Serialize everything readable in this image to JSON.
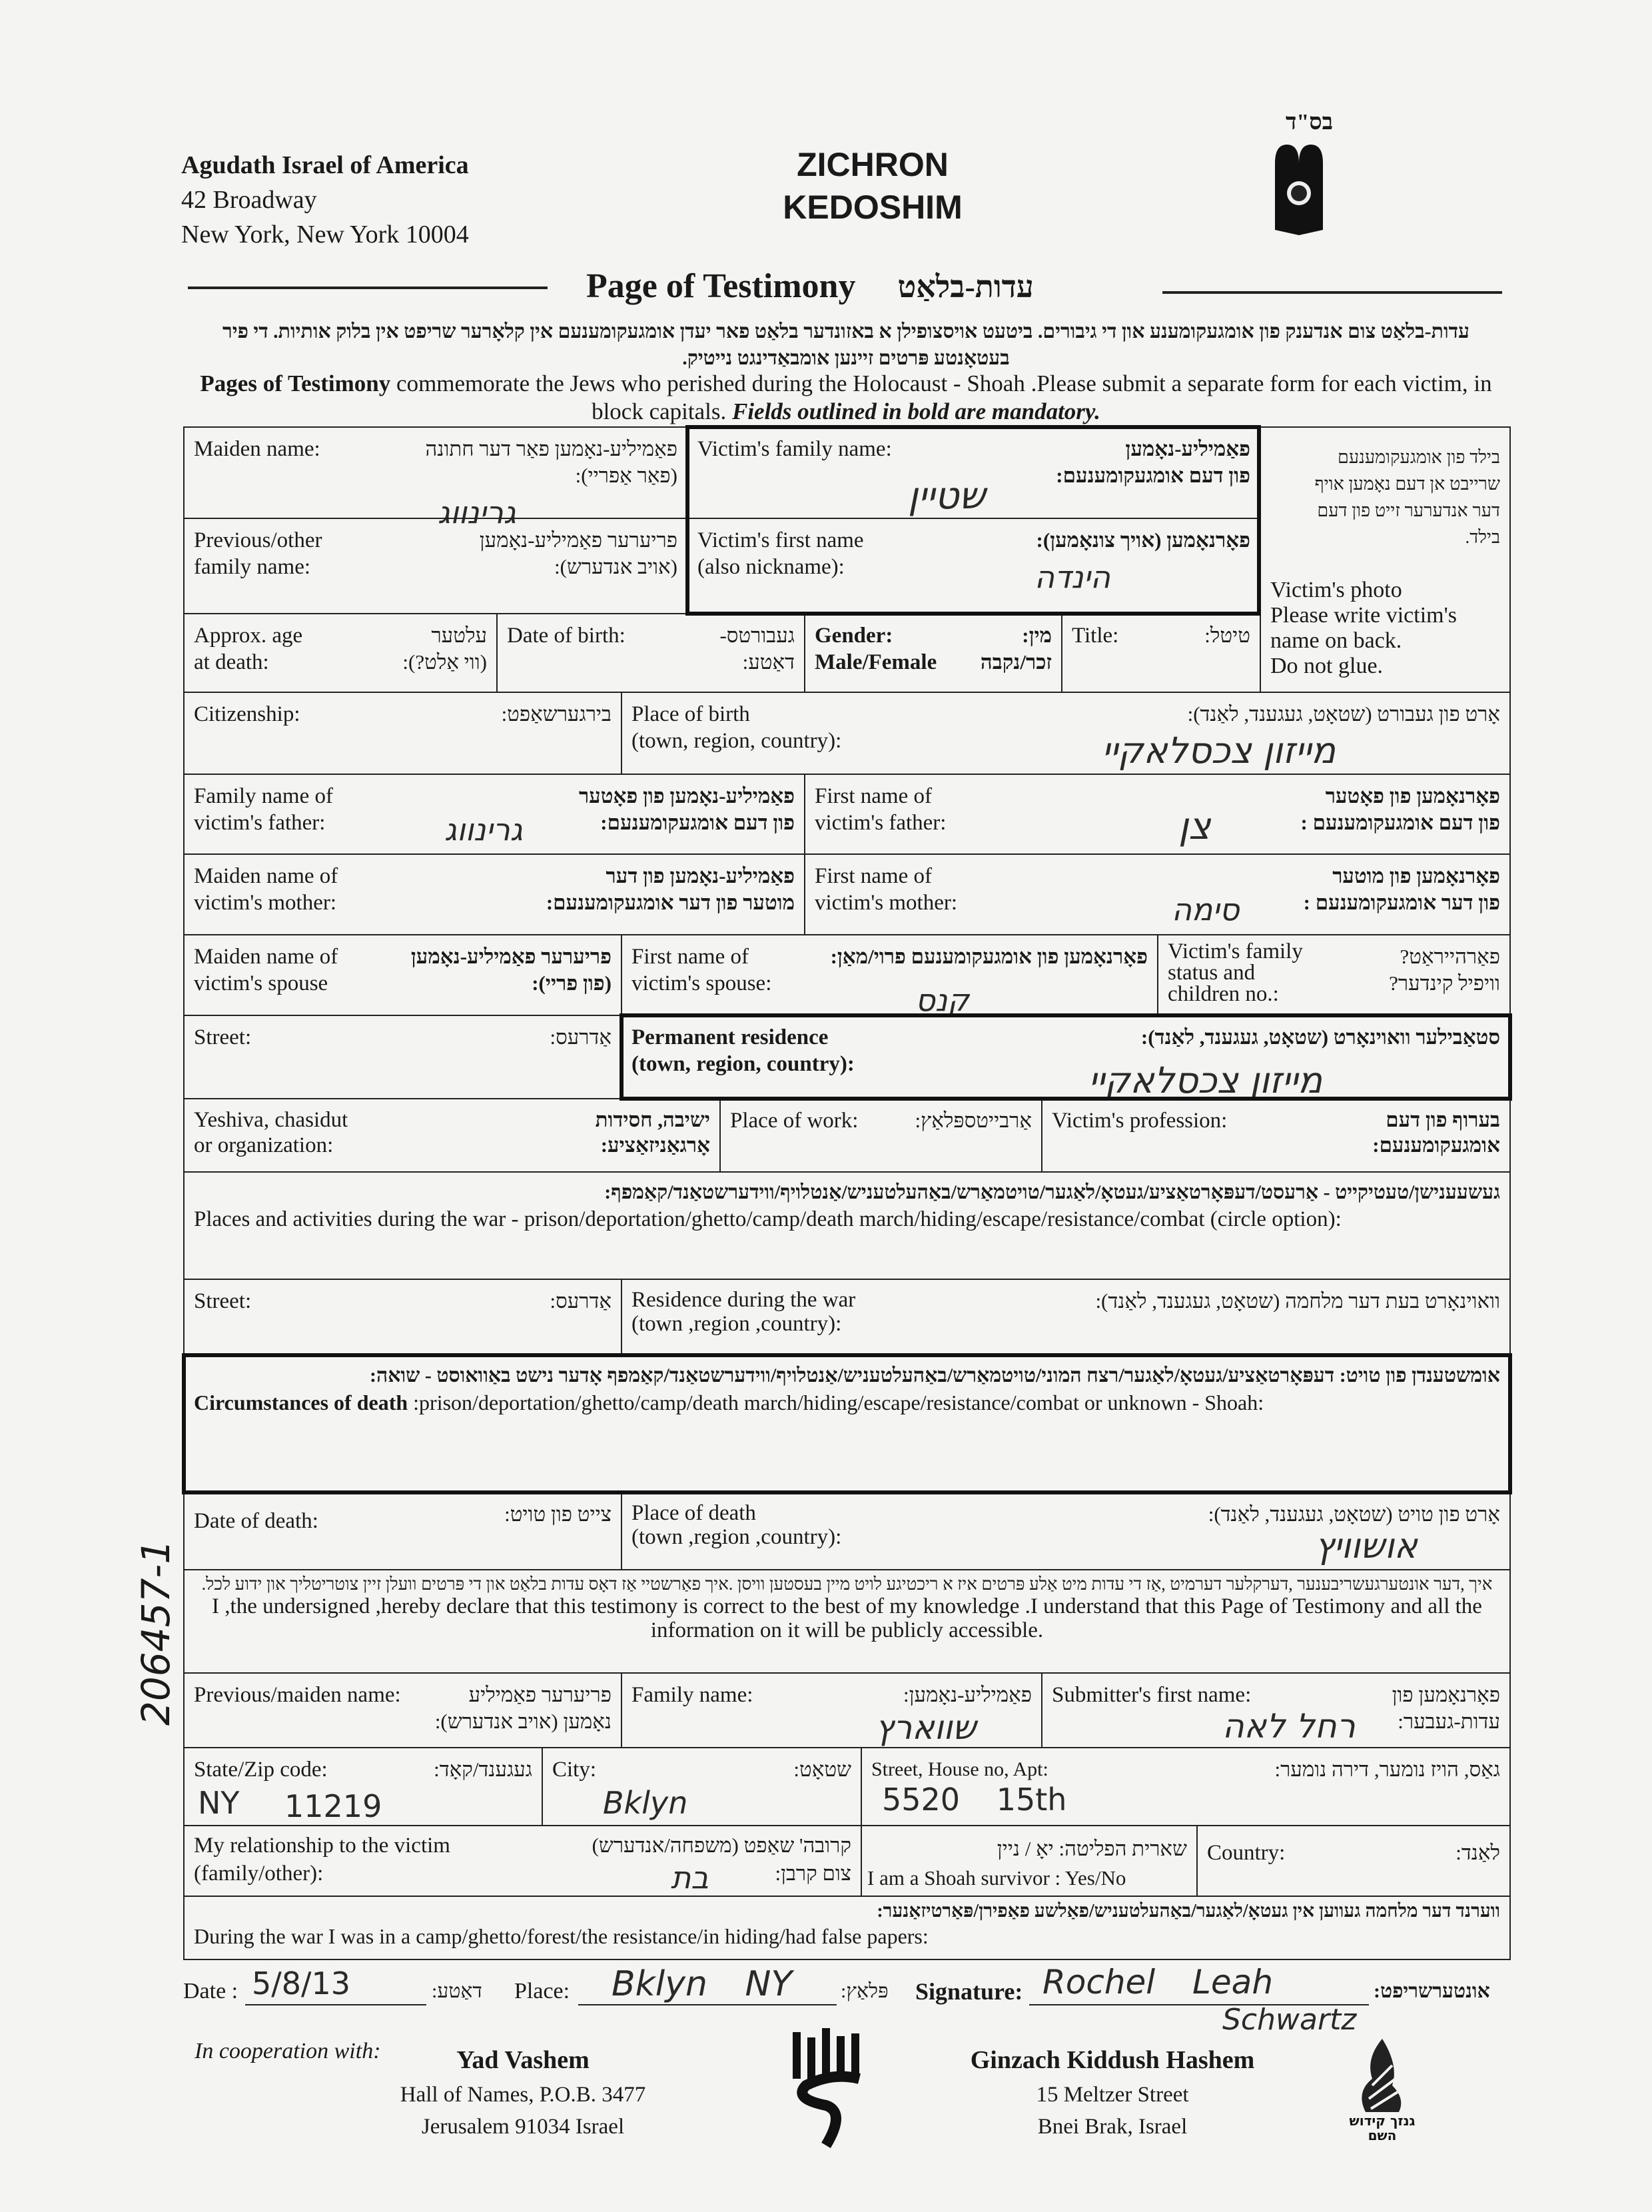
{
  "header": {
    "org_name": "Agudath Israel of America",
    "org_street": "42 Broadway",
    "org_city": "New York, New York 10004",
    "title_line1": "ZICHRON",
    "title_line2": "KEDOSHIM",
    "bsd": "בס\"ד"
  },
  "form_title": {
    "en": "Page of Testimony",
    "he": "עדות-בלאַט"
  },
  "intro": {
    "he": "עדות-בלאַט צום אנדענק פון אומגעקומענע און די גיבורים. ביטעט אויסצופילן א באזונדער בלאַט פאר יעדן אומגעקומענעם אין קלאָרער שריפט אין בלוק אותיות. די פיר בעטאָנטע פּרטים זיינען אומבאַדינגט נייטיק.",
    "en_bold": "Pages of Testimony",
    "en_rest": " commemorate the Jews who perished during the Holocaust - Shoah .Please submit a separate form for each victim, in block capitals. ",
    "en_italic": "Fields outlined in bold are mandatory."
  },
  "fields": {
    "maiden": {
      "en": "Maiden name:",
      "he": "פאַמיליע-נאָמען פאַר דער חתונה\n(פאַר אַפריי):",
      "value": "גרינווג"
    },
    "family": {
      "en": "Victim's family name:",
      "he": "פאַמיליע-נאָמען\nפון דעם אומגעקומענעם:",
      "value": "שטיין"
    },
    "photo": {
      "he": "בילד פון אומגעקומענעם\nשרייבט אן דעם נאָמען אויף\nדער אנדערער זייט פון דעם\nבילד.",
      "en": "Victim's photo\nPlease write victim's\nname on back.\nDo not glue."
    },
    "previous": {
      "en": "Previous/other\nfamily name:",
      "he": "פריערער פאַמיליע-נאָמען\n(אויב אנדערש):"
    },
    "first": {
      "en": "Victim's first name\n(also nickname):",
      "he": "פאָרנאָמען (אויך צונאָמען):",
      "value": "הינדה"
    },
    "age": {
      "en": "Approx. age\nat death:",
      "he": "עלטער\n(ווי אַלט?):"
    },
    "dob": {
      "en": "Date of birth:",
      "he": "געבורטס-\nדאַטע:"
    },
    "gender": {
      "en": "Gender:\nMale/Female",
      "he": "מין:\nזכר/נקבה"
    },
    "title": {
      "en": "Title:",
      "he": "טיטל:"
    },
    "citizenship": {
      "en": "Citizenship:",
      "he": "בירגערשאַפט:"
    },
    "pob": {
      "en": "Place of birth\n(town, region, country):",
      "he": "אָרט פון געבורט (שטאָט, געגענד, לאַנד):",
      "value": "מייזון צכסלאקיי"
    },
    "father_family": {
      "en": "Family name of\nvictim's father:",
      "he": "פאַמיליע-נאָמען פון פאָטער\nפון דעם אומגעקומענעם:",
      "value": "גרינווג"
    },
    "father_first": {
      "en": "First name of\nvictim's father:",
      "he": "פאָרנאָמען פון פאָטער\nפון דעם אומגעקומענעם :",
      "value": "צן"
    },
    "mother_maiden": {
      "en": "Maiden name of\nvictim's mother:",
      "he": "פאַמיליע-נאָמען פון דער\nמוטער פון דער אומגעקומענעם:"
    },
    "mother_first": {
      "en": "First name of\nvictim's mother:",
      "he": "פאָרנאָמען פון מוטער\nפון דער אומגעקומענעם :",
      "value": "סימה"
    },
    "spouse_maiden": {
      "en": "Maiden name of\nvictim's spouse",
      "he": "פריערער פאַמיליע-נאָמען\n(פון פריי):"
    },
    "spouse_first": {
      "en": "First name of\nvictim's spouse:",
      "he": "פאָרנאָמען פון אומגעקומענעם פרוי/מאַן:",
      "value": "קנס"
    },
    "family_status": {
      "en": "Victim's family\nstatus and\nchildren no.:",
      "he": "פאַרהייראַט?\nוויפיל קינדער?"
    },
    "street": {
      "en": "Street:",
      "he": "אַדרעס:"
    },
    "residence": {
      "en": "Permanent residence\n(town, region, country):",
      "he": "סטאַבילער וואוינאָרט (שטאָט, געגענד, לאַנד):",
      "value": "מייזון צכסלאקיי"
    },
    "yeshiva": {
      "en": "Yeshiva, chasidut\nor organization:",
      "he": "ישיבה, חסידות\nאָרגאַניזאַציע:"
    },
    "work": {
      "en": "Place of work:",
      "he": "אַרבייטספּלאַץ:"
    },
    "profession": {
      "en": "Victim's profession:",
      "he": "בערוף פון דעם\nאומגעקומענעם:"
    },
    "activities": {
      "he": "געשעענישן/טעטיקייט - אַרעסט/דעפּאָרטאַציע/געטאָ/לאַגער/טויטמאַרש/באַהעלטעניש/אַנטלויף/ווידערשטאַנד/קאַמפף:",
      "en": "Places and activities during the war - prison/deportation/ghetto/camp/death march/hiding/escape/resistance/combat (circle option):"
    },
    "street_war": {
      "en": "Street:",
      "he": "אַדרעס:"
    },
    "residence_war": {
      "en": "Residence during the war\n(town ,region ,country):",
      "he": "וואוינאָרט בעת דער מלחמה (שטאָט, געגענד, לאַנד):"
    },
    "circumstances": {
      "he": "אומשטענדן פון טויט: דעפּאָרטאַציע/געטאָ/לאַגער/רצח המוני/טויטמאַרש/באַהעלטעניש/אַנטלויף/ווידערשטאַנד/קאַמפף אָדער נישט באַוואוסט - שואה:",
      "en_bold": "Circumstances of death",
      "en_rest": " :prison/deportation/ghetto/camp/death march/hiding/escape/resistance/combat or unknown - Shoah:"
    },
    "dod": {
      "en": "Date of death:",
      "he": "צייט פון טויט:"
    },
    "pod": {
      "en": "Place of death\n(town ,region ,country):",
      "he": "אָרט פון טויט (שטאָט, געגענד, לאַנד):",
      "value": "אושוויץ"
    },
    "declaration": {
      "he": "איך ,דער אונטערגעשריבענער ,דערקלער דערמיט ,אַז די עדות מיט אַלע פּרטים איז א ריכטיגע לויט מיין בעסטען וויסן .איך פאַרשטיי אַז דאָס עדות בלאַט און די פּרטים וועלן זיין צוטריטליך און ידוע לכל.",
      "en": "I ,the undersigned ,hereby declare that this testimony is correct to the best of my knowledge .I understand that this Page of Testimony and all the information on it will be publicly accessible."
    },
    "sub_prev": {
      "en": "Previous/maiden name:",
      "he": "פריערער פאַמיליע\nנאָמען (אויב אנדערש):"
    },
    "sub_family": {
      "en": "Family name:",
      "he": "פאַמיליע-נאָמען:",
      "value": "שווארץ"
    },
    "sub_first": {
      "en": "Submitter's first name:",
      "he": "פאָרנאָמען פון\nעדות-געבער:",
      "value": "רחל לאה"
    },
    "state_zip": {
      "en": "State/Zip code:",
      "he": "געגענד/קאָד:",
      "state": "NY",
      "zip": "11219"
    },
    "city": {
      "en": "City:",
      "he": "שטאָט:",
      "value": "Bklyn"
    },
    "street_house": {
      "en": "Street, House no, Apt:",
      "he": "גאַס, הויז נומער, דירה נומער:",
      "value": "5520 15th"
    },
    "relationship": {
      "en": "My relationship to the victim\n(family/other):",
      "he": "קרובה' שאַפט (משפחה/אנדערש)\nצום קרבן:",
      "value": "בת"
    },
    "survivor": {
      "he": "שארית הפליטה: יאָ / ניין",
      "en": "I am a Shoah survivor : Yes/No"
    },
    "country": {
      "en": "Country:",
      "he": "לאַנד:"
    },
    "during_war": {
      "he": "ווערנד דער מלחמה געווען אין געטאָ/לאַגער/באַהעלטעניש/פאַלשע פאַפירן/פּאַרטיזאַנער:",
      "en": "During the war I was in a camp/ghetto/forest/the resistance/in hiding/had false papers:"
    }
  },
  "signature_row": {
    "date_label": "Date :",
    "date_he": "דאַטע:",
    "date_value": "5/8/13",
    "place_label": "Place:",
    "place_he": "פּלאַץ:",
    "place_value": "Bklyn NY",
    "sig_label": "Signature:",
    "sig_he": "אונטערשריפט:",
    "sig_value_1": "Rochel Leah",
    "sig_value_2": "Schwartz"
  },
  "footer": {
    "coop": "In cooperation with:",
    "yv_name": "Yad Vashem",
    "yv_addr1": "Hall of Names, P.O.B. 3477",
    "yv_addr2": "Jerusalem 91034 Israel",
    "gk_name": "Ginzach Kiddush Hashem",
    "gk_addr1": "15 Meltzer Street",
    "gk_addr2": "Bnei Brak, Israel",
    "gk_logo_text": "גנזך קידוש השם"
  },
  "margin_note": "206457-1"
}
